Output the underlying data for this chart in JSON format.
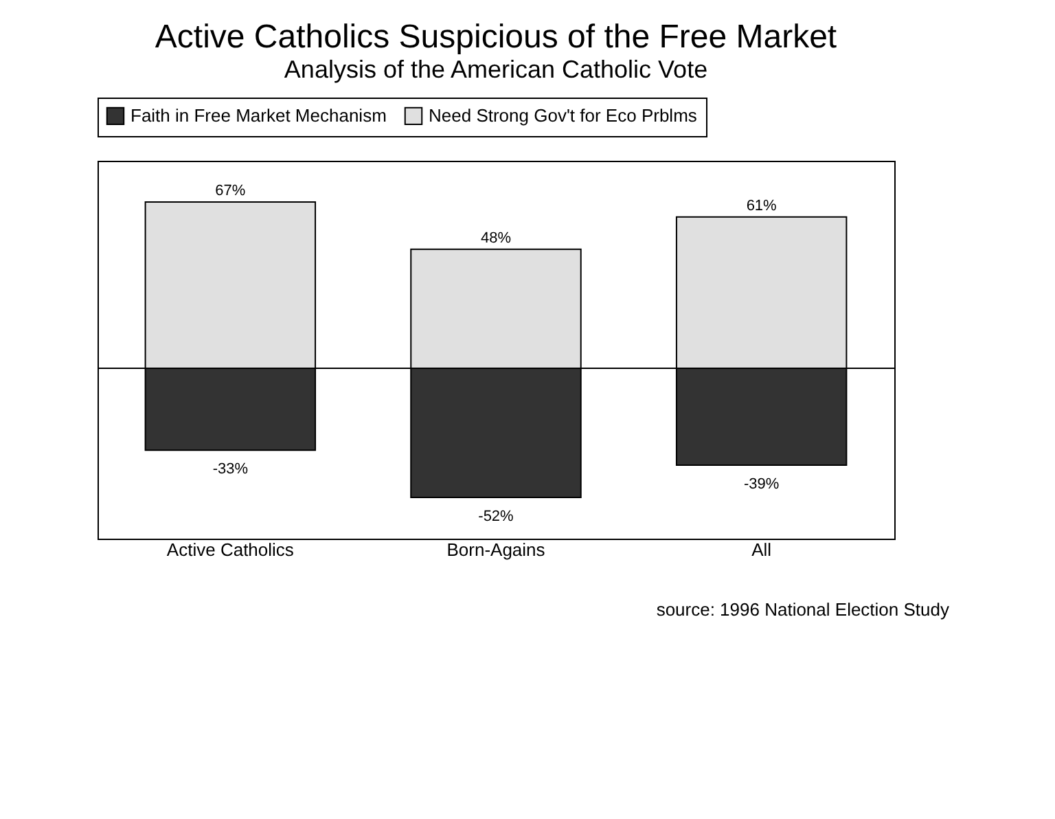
{
  "chart_data": {
    "type": "bar",
    "title": "Active Catholics Suspicious of the Free Market",
    "subtitle": "Analysis of the American Catholic Vote",
    "categories": [
      "Active Catholics",
      "Born-Agains",
      "All"
    ],
    "series": [
      {
        "name": "Faith in Free Market Mechanism",
        "color": "#333333",
        "values": [
          -33,
          -52,
          -39
        ],
        "value_labels": [
          "-33%",
          "-52%",
          "-39%"
        ]
      },
      {
        "name": "Need Strong Gov't for Eco Prblms",
        "color": "#e0e0e0",
        "values": [
          67,
          48,
          61
        ],
        "value_labels": [
          "67%",
          "48%",
          "61%"
        ]
      }
    ],
    "stacked": true,
    "legend": "top",
    "grid": false,
    "annotations": [
      "source:  1996 National Election Study"
    ]
  }
}
